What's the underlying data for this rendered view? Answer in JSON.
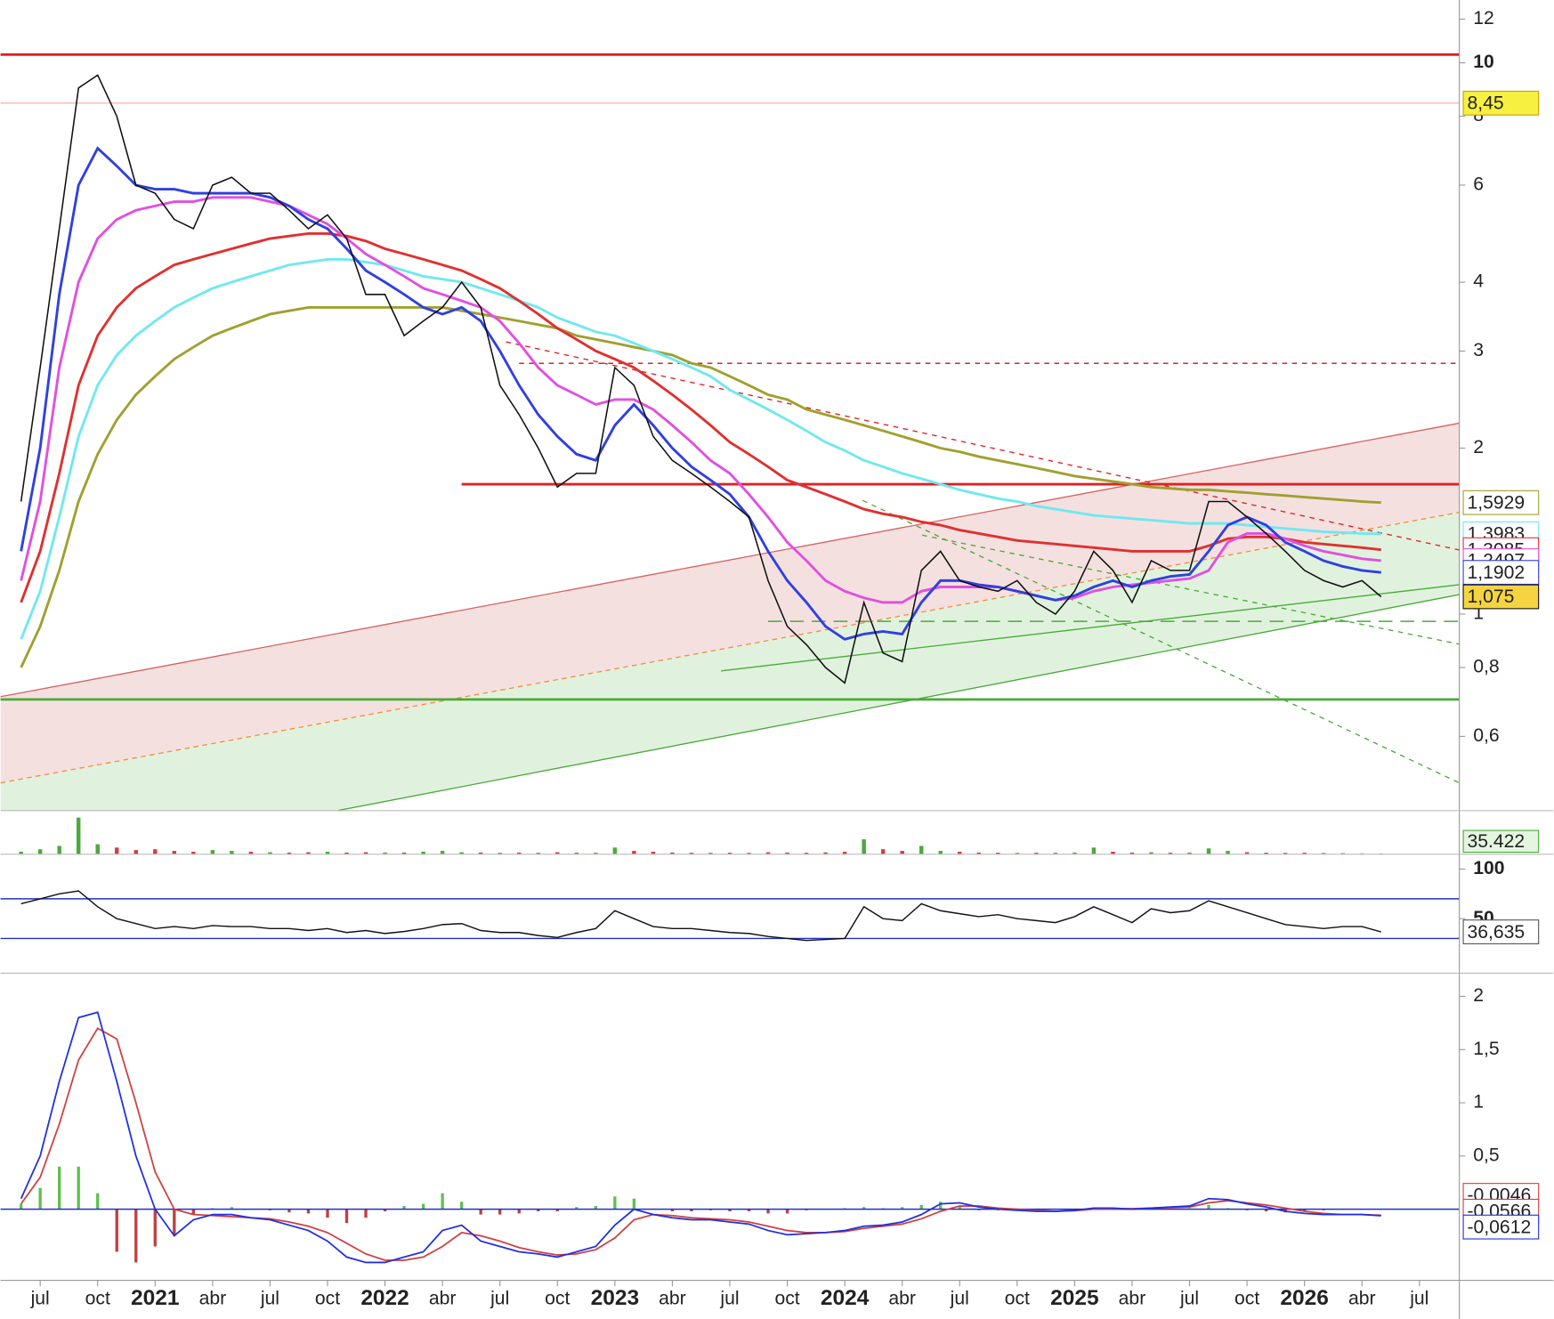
{
  "chart_data": {
    "type": "stock",
    "categories": [
      null,
      "jul",
      null,
      null,
      "oct",
      null,
      null,
      "2021",
      null,
      null,
      "abr",
      null,
      null,
      "jul",
      null,
      null,
      "oct",
      null,
      null,
      "2022",
      null,
      null,
      "abr",
      null,
      null,
      "jul",
      null,
      null,
      "oct",
      null,
      null,
      "2023",
      null,
      null,
      "abr",
      null,
      null,
      "jul",
      null,
      null,
      "oct",
      null,
      null,
      "2024",
      null,
      null,
      "abr",
      null,
      null,
      "jul",
      null,
      null,
      "oct",
      null,
      null,
      "2025",
      null,
      null,
      "abr",
      null,
      null,
      "jul",
      null,
      null,
      "oct",
      null,
      null,
      "2026",
      null,
      null,
      "abr",
      null,
      null,
      "jul",
      null
    ],
    "price": {
      "log_scale": true,
      "ylim": [
        0.44,
        13
      ],
      "yticks": [
        12,
        10,
        8,
        6,
        4,
        3,
        2,
        1,
        {
          "value": 0.8,
          "label": "0,8"
        },
        {
          "value": 0.6,
          "label": "0,6"
        }
      ],
      "levels": [
        {
          "value": 10.35,
          "color": "#e02020"
        },
        {
          "value": 8.45,
          "color": "#f0a090",
          "label": "8,45"
        },
        {
          "value": 2.85,
          "color": "#e02020",
          "dashed": true,
          "from": 26
        },
        {
          "value": 1.72,
          "color": "#e02020",
          "from": 23
        },
        {
          "value": 0.7,
          "color": "#4aaa3a"
        },
        {
          "value": 0.97,
          "color": "#4aaa3a",
          "dashed": true,
          "from": 39
        }
      ],
      "series": [
        {
          "color": "#a0a030",
          "end_label": "1,5929",
          "values": [
            0.8,
            0.95,
            1.2,
            1.6,
            1.95,
            2.25,
            2.5,
            2.7,
            2.9,
            3.05,
            3.2,
            3.3,
            3.4,
            3.5,
            3.55,
            3.6,
            3.6,
            3.6,
            3.6,
            3.6,
            3.6,
            3.6,
            3.6,
            3.55,
            3.5,
            3.45,
            3.4,
            3.35,
            3.3,
            3.2,
            3.15,
            3.1,
            3.05,
            3,
            2.95,
            2.85,
            2.8,
            2.7,
            2.6,
            2.5,
            2.45,
            2.35,
            2.3,
            2.25,
            2.2,
            2.15,
            2.1,
            2.05,
            2.0,
            1.97,
            1.93,
            1.9,
            1.87,
            1.84,
            1.81,
            1.78,
            1.76,
            1.74,
            1.72,
            1.7,
            1.69,
            1.68,
            1.68,
            1.67,
            1.66,
            1.65,
            1.64,
            1.63,
            1.62,
            1.61,
            1.6,
            1.5929,
            null,
            null,
            null
          ]
        },
        {
          "color": "#70e8f0",
          "end_label": "1,3983",
          "values": [
            0.9,
            1.1,
            1.5,
            2.1,
            2.6,
            2.95,
            3.2,
            3.4,
            3.6,
            3.75,
            3.9,
            4,
            4.1,
            4.2,
            4.3,
            4.35,
            4.4,
            4.4,
            4.35,
            4.3,
            4.2,
            4.1,
            4.05,
            4,
            3.9,
            3.8,
            3.7,
            3.6,
            3.45,
            3.35,
            3.25,
            3.2,
            3.1,
            3,
            2.9,
            2.8,
            2.7,
            2.55,
            2.45,
            2.35,
            2.25,
            2.15,
            2.05,
            1.98,
            1.9,
            1.85,
            1.8,
            1.76,
            1.72,
            1.68,
            1.65,
            1.62,
            1.6,
            1.57,
            1.55,
            1.53,
            1.51,
            1.5,
            1.49,
            1.48,
            1.47,
            1.46,
            1.46,
            1.46,
            1.45,
            1.44,
            1.43,
            1.42,
            1.41,
            1.405,
            1.4,
            1.3983,
            null,
            null,
            null
          ]
        },
        {
          "color": "#e03030",
          "end_label": "1,3085",
          "values": [
            1.05,
            1.3,
            1.8,
            2.6,
            3.2,
            3.6,
            3.9,
            4.1,
            4.3,
            4.4,
            4.5,
            4.6,
            4.7,
            4.8,
            4.85,
            4.9,
            4.9,
            4.85,
            4.75,
            4.6,
            4.5,
            4.4,
            4.3,
            4.2,
            4.05,
            3.9,
            3.7,
            3.5,
            3.3,
            3.15,
            3,
            2.9,
            2.8,
            2.65,
            2.5,
            2.35,
            2.2,
            2.05,
            1.95,
            1.85,
            1.75,
            1.7,
            1.65,
            1.6,
            1.55,
            1.52,
            1.5,
            1.47,
            1.45,
            1.42,
            1.4,
            1.38,
            1.36,
            1.35,
            1.34,
            1.33,
            1.32,
            1.31,
            1.3,
            1.3,
            1.3,
            1.3,
            1.33,
            1.37,
            1.38,
            1.38,
            1.37,
            1.35,
            1.34,
            1.33,
            1.32,
            1.3085,
            null,
            null,
            null
          ]
        },
        {
          "color": "#e050e0",
          "end_label": "1,2497",
          "values": [
            1.15,
            1.6,
            2.8,
            4,
            4.8,
            5.2,
            5.4,
            5.5,
            5.6,
            5.6,
            5.7,
            5.7,
            5.7,
            5.6,
            5.5,
            5.3,
            5.1,
            4.8,
            4.5,
            4.3,
            4.1,
            3.9,
            3.8,
            3.7,
            3.6,
            3.4,
            3.1,
            2.8,
            2.6,
            2.5,
            2.4,
            2.45,
            2.45,
            2.35,
            2.2,
            2.05,
            1.9,
            1.8,
            1.65,
            1.5,
            1.35,
            1.25,
            1.15,
            1.1,
            1.07,
            1.05,
            1.05,
            1.1,
            1.12,
            1.12,
            1.12,
            1.12,
            1.1,
            1.08,
            1.06,
            1.07,
            1.1,
            1.12,
            1.13,
            1.14,
            1.15,
            1.16,
            1.2,
            1.35,
            1.4,
            1.4,
            1.37,
            1.33,
            1.3,
            1.28,
            1.26,
            1.2497,
            null,
            null,
            null
          ]
        },
        {
          "color": "#3040e0",
          "end_label": "1,1902",
          "values": [
            1.3,
            2,
            3.8,
            6,
            7,
            6.5,
            6,
            5.9,
            5.9,
            5.8,
            5.8,
            5.8,
            5.8,
            5.7,
            5.5,
            5.2,
            5,
            4.6,
            4.2,
            4,
            3.8,
            3.6,
            3.5,
            3.6,
            3.4,
            3,
            2.6,
            2.3,
            2.1,
            1.95,
            1.9,
            2.2,
            2.4,
            2.2,
            2,
            1.85,
            1.75,
            1.65,
            1.5,
            1.3,
            1.15,
            1.05,
            0.95,
            0.9,
            0.92,
            0.93,
            0.92,
            1.05,
            1.15,
            1.15,
            1.13,
            1.12,
            1.1,
            1.08,
            1.06,
            1.08,
            1.12,
            1.15,
            1.12,
            1.15,
            1.17,
            1.18,
            1.3,
            1.45,
            1.5,
            1.45,
            1.35,
            1.3,
            1.25,
            1.22,
            1.2,
            1.1902,
            null,
            null,
            null
          ]
        },
        {
          "color": "#111111",
          "end_label": "1,075",
          "label_fill": "#f5d442",
          "values": [
            1.6,
            2.8,
            5,
            9,
            9.5,
            8,
            6,
            5.8,
            5.2,
            5,
            6,
            6.2,
            5.8,
            5.8,
            5.4,
            5,
            5.3,
            4.8,
            3.8,
            3.8,
            3.2,
            3.4,
            3.6,
            4,
            3.6,
            2.6,
            2.3,
            2,
            1.7,
            1.8,
            1.8,
            2.8,
            2.6,
            2.1,
            1.9,
            1.8,
            1.7,
            1.6,
            1.5,
            1.15,
            0.95,
            0.88,
            0.8,
            0.75,
            1.05,
            0.85,
            0.82,
            1.2,
            1.3,
            1.15,
            1.12,
            1.1,
            1.15,
            1.05,
            1.0,
            1.1,
            1.3,
            1.2,
            1.05,
            1.25,
            1.2,
            1.2,
            1.6,
            1.6,
            1.5,
            1.4,
            1.3,
            1.2,
            1.15,
            1.12,
            1.15,
            1.075,
            null,
            null,
            null
          ]
        }
      ]
    },
    "volume": {
      "ylim": [
        0,
        2500000
      ],
      "end_label": "35.422",
      "values": [
        150000,
        300000,
        500000,
        2200000,
        600000,
        400000,
        250000,
        300000,
        200000,
        150000,
        250000,
        200000,
        150000,
        120000,
        100000,
        120000,
        150000,
        100000,
        120000,
        100000,
        100000,
        150000,
        200000,
        120000,
        100000,
        80000,
        100000,
        80000,
        120000,
        100000,
        90000,
        400000,
        200000,
        150000,
        100000,
        90000,
        80000,
        90000,
        80000,
        120000,
        100000,
        90000,
        110000,
        150000,
        900000,
        300000,
        200000,
        500000,
        200000,
        150000,
        100000,
        90000,
        80000,
        90000,
        80000,
        100000,
        400000,
        150000,
        100000,
        120000,
        90000,
        100000,
        350000,
        200000,
        120000,
        90000,
        80000,
        90000,
        70000,
        60000,
        50000,
        35422,
        null,
        null,
        null
      ]
    },
    "rsi": {
      "ylim": [
        0,
        115
      ],
      "yticks": [
        100,
        50
      ],
      "levels": [
        70,
        30
      ],
      "end_label": "36,635",
      "values": [
        65,
        70,
        75,
        78,
        62,
        50,
        45,
        40,
        42,
        40,
        43,
        42,
        42,
        40,
        40,
        38,
        40,
        36,
        38,
        35,
        37,
        40,
        44,
        45,
        38,
        36,
        36,
        33,
        31,
        36,
        40,
        58,
        50,
        42,
        40,
        40,
        38,
        36,
        35,
        32,
        30,
        28,
        29,
        30,
        62,
        50,
        48,
        65,
        58,
        55,
        52,
        54,
        50,
        48,
        46,
        52,
        62,
        54,
        46,
        60,
        56,
        58,
        68,
        62,
        56,
        50,
        44,
        42,
        40,
        42,
        42,
        36.635,
        null,
        null,
        null
      ]
    },
    "macd": {
      "ylim": [
        -0.65,
        2.19
      ],
      "yticks": [
        2,
        {
          "value": 1.5,
          "label": "1,5"
        },
        1,
        {
          "value": 0.5,
          "label": "0,5"
        }
      ],
      "histogram": {
        "end_label": "-0,0046",
        "values": [
          0.05,
          0.2,
          0.4,
          0.4,
          0.15,
          -0.4,
          -0.5,
          -0.35,
          -0.25,
          -0.05,
          0.01,
          0.02,
          0,
          -0.01,
          -0.03,
          -0.04,
          -0.08,
          -0.13,
          -0.08,
          -0.02,
          0.03,
          0.05,
          0.15,
          0.07,
          -0.05,
          -0.05,
          -0.04,
          -0.02,
          -0.02,
          0.02,
          0.03,
          0.12,
          0.1,
          0,
          -0.02,
          -0.02,
          -0.01,
          -0.02,
          -0.02,
          -0.04,
          -0.04,
          -0.01,
          0,
          0.01,
          0.02,
          0.01,
          0.02,
          0.04,
          0.07,
          0.03,
          -0.01,
          -0.01,
          -0.01,
          -0.01,
          0,
          0.005,
          0.01,
          0.005,
          -0.005,
          0,
          0.005,
          0.01,
          0.04,
          0.01,
          -0.01,
          -0.02,
          -0.03,
          -0.02,
          -0.01,
          0,
          0,
          -0.0046,
          null,
          null,
          null
        ]
      },
      "series": [
        {
          "color": "#d04040",
          "end_label": "-0,0566",
          "values": [
            0.05,
            0.3,
            0.8,
            1.4,
            1.7,
            1.6,
            1.0,
            0.35,
            0,
            -0.05,
            -0.06,
            -0.07,
            -0.08,
            -0.09,
            -0.12,
            -0.16,
            -0.22,
            -0.32,
            -0.42,
            -0.48,
            -0.48,
            -0.45,
            -0.35,
            -0.22,
            -0.25,
            -0.3,
            -0.36,
            -0.4,
            -0.43,
            -0.42,
            -0.38,
            -0.27,
            -0.1,
            -0.05,
            -0.06,
            -0.08,
            -0.09,
            -0.1,
            -0.12,
            -0.16,
            -0.2,
            -0.22,
            -0.22,
            -0.21,
            -0.18,
            -0.16,
            -0.14,
            -0.09,
            -0.02,
            0.03,
            0.03,
            0.01,
            0,
            -0.01,
            -0.02,
            -0.015,
            0,
            0.005,
            0.005,
            0.01,
            0.015,
            0.02,
            0.06,
            0.08,
            0.06,
            0.04,
            0.01,
            -0.02,
            -0.04,
            -0.05,
            -0.05,
            -0.0566,
            null,
            null,
            null
          ]
        },
        {
          "color": "#2030e0",
          "end_label": "-0,0612",
          "values": [
            0.1,
            0.5,
            1.2,
            1.8,
            1.85,
            1.2,
            0.5,
            0,
            -0.25,
            -0.1,
            -0.05,
            -0.05,
            -0.08,
            -0.1,
            -0.15,
            -0.2,
            -0.3,
            -0.45,
            -0.5,
            -0.5,
            -0.45,
            -0.4,
            -0.2,
            -0.15,
            -0.3,
            -0.35,
            -0.4,
            -0.42,
            -0.45,
            -0.4,
            -0.35,
            -0.15,
            0,
            -0.05,
            -0.08,
            -0.1,
            -0.1,
            -0.12,
            -0.14,
            -0.2,
            -0.24,
            -0.23,
            -0.22,
            -0.2,
            -0.16,
            -0.15,
            -0.12,
            -0.05,
            0.05,
            0.06,
            0.02,
            0,
            -0.01,
            -0.02,
            -0.02,
            -0.01,
            0.01,
            0.01,
            0,
            0.01,
            0.02,
            0.03,
            0.1,
            0.09,
            0.05,
            0.02,
            -0.02,
            -0.04,
            -0.05,
            -0.05,
            -0.05,
            -0.0612,
            null,
            null,
            null
          ]
        }
      ]
    }
  }
}
